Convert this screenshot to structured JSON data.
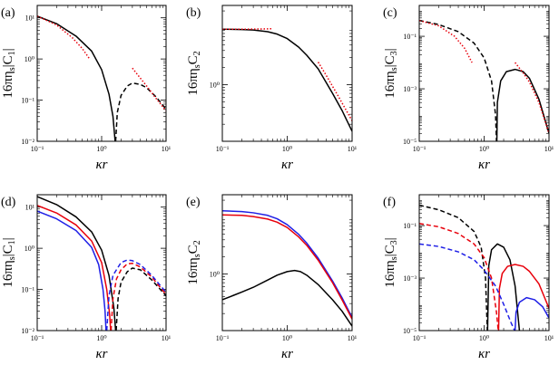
{
  "chart_data": [
    {
      "panel": "(a)",
      "type": "line",
      "xscale": "log",
      "yscale": "log",
      "xlim": [
        0.1,
        10
      ],
      "ylim": [
        0.01,
        20
      ],
      "xlabel": "κr",
      "ylabel": "16πη_s|C_1|",
      "xticks": [
        0.1,
        1,
        10
      ],
      "xtick_labels": [
        "10⁻¹",
        "10⁰",
        "10¹"
      ],
      "yticks": [
        0.01,
        0.1,
        1,
        10
      ],
      "ytick_labels": [
        "10⁻²",
        "10⁻¹",
        "10⁰",
        "10¹"
      ],
      "series": [
        {
          "color": "#000000",
          "dash": "solid",
          "x": [
            0.1,
            0.2,
            0.4,
            0.7,
            1.0,
            1.3,
            1.5,
            1.62
          ],
          "y": [
            11,
            7.2,
            3.6,
            1.55,
            0.55,
            0.14,
            0.04,
            0.01
          ]
        },
        {
          "color": "#000000",
          "dash": "dashed",
          "x": [
            1.65,
            1.75,
            2.0,
            2.5,
            3.0,
            4.0,
            5.0,
            7.0,
            10.0
          ],
          "y": [
            0.01,
            0.05,
            0.13,
            0.22,
            0.26,
            0.24,
            0.2,
            0.12,
            0.06
          ]
        },
        {
          "color": "#e8000b",
          "dash": "dotted",
          "x": [
            0.1,
            0.2,
            0.35,
            0.5,
            0.65
          ],
          "y": [
            11,
            6.7,
            3.3,
            1.8,
            1.0
          ]
        },
        {
          "color": "#e8000b",
          "dash": "dotted",
          "x": [
            3.0,
            4.0,
            5.0,
            7.0,
            10.0
          ],
          "y": [
            0.6,
            0.34,
            0.22,
            0.11,
            0.055
          ]
        }
      ]
    },
    {
      "panel": "(b)",
      "type": "line",
      "xscale": "log",
      "yscale": "log",
      "xlim": [
        0.1,
        10
      ],
      "ylim": [
        0.1,
        25
      ],
      "xlabel": "κr",
      "ylabel": "16πη_sC_2",
      "xticks": [
        0.1,
        1,
        10
      ],
      "xtick_labels": [
        "10⁻¹",
        "10⁰",
        "10¹"
      ],
      "yticks": [
        1
      ],
      "ytick_labels": [
        "10⁰"
      ],
      "series": [
        {
          "color": "#000000",
          "dash": "solid",
          "x": [
            0.1,
            0.2,
            0.3,
            0.5,
            0.7,
            1.0,
            1.5,
            2.0,
            3.0,
            5.0,
            7.0,
            10.0
          ],
          "y": [
            9.5,
            9.4,
            9.2,
            8.6,
            7.8,
            6.5,
            4.6,
            3.3,
            1.9,
            0.7,
            0.35,
            0.15
          ]
        },
        {
          "color": "#e8000b",
          "dash": "dotted",
          "x": [
            0.1,
            0.2,
            0.4,
            0.6
          ],
          "y": [
            9.5,
            9.5,
            9.6,
            9.7
          ]
        },
        {
          "color": "#e8000b",
          "dash": "dotted",
          "x": [
            3.0,
            4.0,
            6.0,
            10.0
          ],
          "y": [
            2.5,
            1.45,
            0.65,
            0.23
          ]
        }
      ]
    },
    {
      "panel": "(c)",
      "type": "line",
      "xscale": "log",
      "yscale": "log",
      "xlim": [
        0.1,
        10
      ],
      "ylim": [
        1e-05,
        1.5
      ],
      "xlabel": "κr",
      "ylabel": "16πη_s|C_3|",
      "xticks": [
        0.1,
        1,
        10
      ],
      "xtick_labels": [
        "10⁻¹",
        "10⁰",
        "10¹"
      ],
      "yticks": [
        1e-05,
        0.001,
        0.1
      ],
      "ytick_labels": [
        "10⁻⁵",
        "10⁻³",
        "10⁻¹"
      ],
      "series": [
        {
          "color": "#000000",
          "dash": "dashed",
          "x": [
            0.1,
            0.2,
            0.4,
            0.7,
            1.0,
            1.3,
            1.5,
            1.55
          ],
          "y": [
            0.4,
            0.28,
            0.15,
            0.055,
            0.015,
            0.002,
            0.0001,
            1e-05
          ]
        },
        {
          "color": "#000000",
          "dash": "solid",
          "x": [
            1.57,
            1.6,
            1.8,
            2.2,
            3.0,
            4.0,
            5.0,
            7.0,
            10.0
          ],
          "y": [
            1e-05,
            0.0003,
            0.002,
            0.0045,
            0.0055,
            0.0045,
            0.0025,
            0.0004,
            2e-05
          ]
        },
        {
          "color": "#e8000b",
          "dash": "dotted",
          "x": [
            0.1,
            0.2,
            0.35,
            0.5,
            0.65
          ],
          "y": [
            0.4,
            0.25,
            0.1,
            0.035,
            0.01
          ]
        },
        {
          "color": "#e8000b",
          "dash": "dotted",
          "x": [
            3.0,
            4.0,
            5.0,
            7.0,
            10.0
          ],
          "y": [
            0.01,
            0.004,
            0.0018,
            0.0003,
            2e-05
          ]
        }
      ]
    },
    {
      "panel": "(d)",
      "type": "line",
      "xscale": "log",
      "yscale": "log",
      "xlim": [
        0.1,
        10
      ],
      "ylim": [
        0.01,
        20
      ],
      "xlabel": "κr",
      "ylabel": "16πη_s|C_1|",
      "xticks": [
        0.1,
        1,
        10
      ],
      "xtick_labels": [
        "10⁻¹",
        "10⁰",
        "10¹"
      ],
      "yticks": [
        0.01,
        0.1,
        1,
        10
      ],
      "ytick_labels": [
        "10⁻²",
        "10⁻¹",
        "10⁰",
        "10¹"
      ],
      "series": [
        {
          "color": "#000000",
          "dash": "solid",
          "x": [
            0.1,
            0.2,
            0.4,
            0.7,
            1.0,
            1.3,
            1.55,
            1.65
          ],
          "y": [
            18,
            11.5,
            5.8,
            2.5,
            0.9,
            0.22,
            0.035,
            0.01
          ]
        },
        {
          "color": "#000000",
          "dash": "dashed",
          "x": [
            1.68,
            1.8,
            2.0,
            2.5,
            3.0,
            4.0,
            6.0,
            10.0
          ],
          "y": [
            0.01,
            0.06,
            0.15,
            0.27,
            0.33,
            0.3,
            0.17,
            0.07
          ]
        },
        {
          "color": "#e8000b",
          "dash": "solid",
          "x": [
            0.1,
            0.2,
            0.4,
            0.7,
            1.0,
            1.2,
            1.33,
            1.38
          ],
          "y": [
            11,
            7.2,
            3.7,
            1.5,
            0.45,
            0.1,
            0.025,
            0.01
          ]
        },
        {
          "color": "#e8000b",
          "dash": "dashed",
          "x": [
            1.4,
            1.5,
            1.7,
            2.0,
            2.5,
            3.0,
            4.0,
            6.0,
            10.0
          ],
          "y": [
            0.01,
            0.06,
            0.18,
            0.3,
            0.42,
            0.43,
            0.35,
            0.2,
            0.075
          ]
        },
        {
          "color": "#1f1fe6",
          "dash": "solid",
          "x": [
            0.1,
            0.2,
            0.4,
            0.7,
            0.9,
            1.05,
            1.13,
            1.17
          ],
          "y": [
            8,
            5.2,
            2.7,
            1.05,
            0.4,
            0.1,
            0.03,
            0.01
          ]
        },
        {
          "color": "#1f1fe6",
          "dash": "dashed",
          "x": [
            1.2,
            1.3,
            1.5,
            2.0,
            2.5,
            3.0,
            4.0,
            6.0,
            10.0
          ],
          "y": [
            0.01,
            0.07,
            0.22,
            0.45,
            0.52,
            0.5,
            0.4,
            0.22,
            0.085
          ]
        }
      ]
    },
    {
      "panel": "(e)",
      "type": "line",
      "xscale": "log",
      "yscale": "log",
      "xlim": [
        0.1,
        10
      ],
      "ylim": [
        0.1,
        25
      ],
      "xlabel": "κr",
      "ylabel": "16πη_sC_2",
      "xticks": [
        0.1,
        1,
        10
      ],
      "xtick_labels": [
        "10⁻¹",
        "10⁰",
        "10¹"
      ],
      "yticks": [
        1
      ],
      "ytick_labels": [
        "10⁰"
      ],
      "series": [
        {
          "color": "#1f1fe6",
          "dash": "solid",
          "x": [
            0.1,
            0.2,
            0.3,
            0.5,
            0.7,
            1.0,
            1.5,
            2.0,
            3.0,
            5.0,
            7.0,
            10.0
          ],
          "y": [
            13,
            12.6,
            12,
            10.8,
            9.4,
            7.4,
            5.0,
            3.5,
            1.9,
            0.75,
            0.38,
            0.17
          ]
        },
        {
          "color": "#e8000b",
          "dash": "solid",
          "x": [
            0.1,
            0.2,
            0.3,
            0.5,
            0.7,
            1.0,
            1.5,
            2.0,
            3.0,
            5.0,
            7.0,
            10.0
          ],
          "y": [
            11,
            10.8,
            10.3,
            9.3,
            8.2,
            6.6,
            4.5,
            3.2,
            1.75,
            0.7,
            0.35,
            0.16
          ]
        },
        {
          "color": "#000000",
          "dash": "solid",
          "x": [
            0.1,
            0.15,
            0.2,
            0.3,
            0.5,
            0.7,
            1.0,
            1.3,
            1.6,
            2.0,
            3.0,
            5.0,
            7.0,
            10.0
          ],
          "y": [
            0.35,
            0.42,
            0.48,
            0.58,
            0.78,
            0.95,
            1.1,
            1.15,
            1.1,
            0.95,
            0.65,
            0.35,
            0.22,
            0.12
          ]
        }
      ]
    },
    {
      "panel": "(f)",
      "type": "line",
      "xscale": "log",
      "yscale": "log",
      "xlim": [
        0.1,
        10
      ],
      "ylim": [
        1e-05,
        1.5
      ],
      "xlabel": "κr",
      "ylabel": "16πη_s|C_3|",
      "xticks": [
        0.1,
        1,
        10
      ],
      "xtick_labels": [
        "10⁻¹",
        "10⁰",
        "10¹"
      ],
      "yticks": [
        1e-05,
        0.001,
        0.1
      ],
      "ytick_labels": [
        "10⁻⁵",
        "10⁻³",
        "10⁻¹"
      ],
      "series": [
        {
          "color": "#000000",
          "dash": "dashed",
          "x": [
            0.1,
            0.2,
            0.4,
            0.7,
            0.9,
            1.05,
            1.12
          ],
          "y": [
            0.6,
            0.4,
            0.2,
            0.06,
            0.015,
            0.001,
            1e-05
          ]
        },
        {
          "color": "#000000",
          "dash": "solid",
          "x": [
            1.13,
            1.18,
            1.3,
            1.6,
            2.0,
            2.5,
            3.0,
            3.5
          ],
          "y": [
            1e-05,
            0.003,
            0.012,
            0.02,
            0.015,
            0.005,
            0.0005,
            1e-05
          ]
        },
        {
          "color": "#e8000b",
          "dash": "dashed",
          "x": [
            0.1,
            0.2,
            0.4,
            0.7,
            1.0,
            1.3,
            1.55,
            1.65
          ],
          "y": [
            0.12,
            0.09,
            0.05,
            0.02,
            0.006,
            0.001,
            5e-05,
            1e-05
          ]
        },
        {
          "color": "#e8000b",
          "dash": "solid",
          "x": [
            1.67,
            1.72,
            1.9,
            2.3,
            3.0,
            4.0,
            5.0,
            7.0,
            10.0
          ],
          "y": [
            1e-05,
            0.0004,
            0.0015,
            0.0028,
            0.0033,
            0.0028,
            0.0018,
            0.0006,
            7e-05
          ]
        },
        {
          "color": "#1f1fe6",
          "dash": "dashed",
          "x": [
            0.1,
            0.2,
            0.4,
            0.7,
            1.0,
            1.5,
            2.0,
            2.6,
            2.95
          ],
          "y": [
            0.02,
            0.016,
            0.01,
            0.005,
            0.002,
            0.0005,
            0.0001,
            2e-05,
            1e-05
          ]
        },
        {
          "color": "#1f1fe6",
          "dash": "solid",
          "x": [
            3.0,
            3.1,
            3.5,
            4.5,
            6.0,
            8.0,
            10.0
          ],
          "y": [
            1e-05,
            5e-05,
            0.00012,
            0.00018,
            0.00015,
            8e-05,
            3e-05
          ]
        }
      ]
    }
  ]
}
